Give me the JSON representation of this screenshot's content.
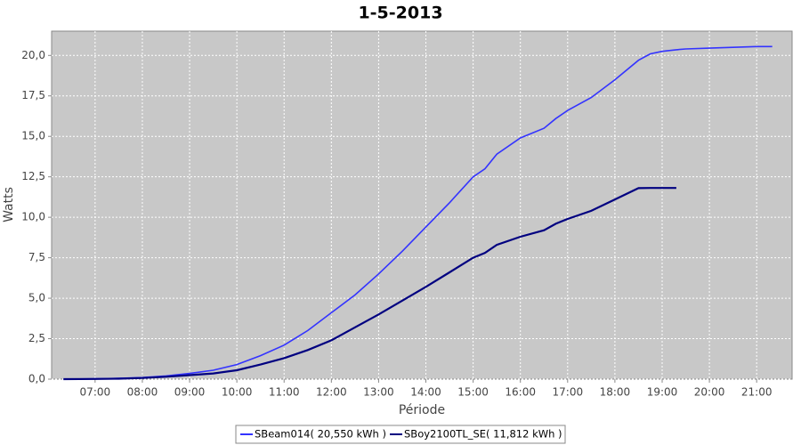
{
  "chart_data": {
    "type": "line",
    "title": "1-5-2013",
    "x_label": "Période",
    "y_label": "Watts",
    "x": [
      6.33,
      7,
      7.5,
      8,
      8.5,
      9,
      9.5,
      10,
      10.5,
      11,
      11.5,
      12,
      12.5,
      13,
      13.5,
      14,
      14.5,
      15,
      15.25,
      15.5,
      16,
      16.5,
      16.75,
      17,
      17.5,
      18,
      18.5,
      18.75,
      19,
      19.3,
      19.5,
      20,
      20.5,
      21,
      21.33
    ],
    "series": [
      {
        "name": "SBeam014( 20,550 kWh )",
        "color": "#3333ff",
        "values": [
          0,
          0.02,
          0.05,
          0.1,
          0.2,
          0.35,
          0.55,
          0.9,
          1.45,
          2.1,
          3.0,
          4.1,
          5.2,
          6.5,
          7.9,
          9.4,
          10.9,
          12.5,
          13.0,
          13.9,
          14.9,
          15.5,
          16.1,
          16.6,
          17.4,
          18.5,
          19.7,
          20.1,
          20.25,
          20.35,
          20.4,
          20.45,
          20.5,
          20.55,
          20.55
        ]
      },
      {
        "name": "SBoy2100TL_SE( 11,812 kWh )",
        "color": "#000080",
        "values": [
          0,
          0.01,
          0.03,
          0.07,
          0.15,
          0.25,
          0.35,
          0.55,
          0.9,
          1.3,
          1.8,
          2.4,
          3.2,
          4.0,
          4.85,
          5.7,
          6.6,
          7.5,
          7.8,
          8.3,
          8.8,
          9.2,
          9.6,
          9.9,
          10.4,
          11.1,
          11.8,
          11.81,
          11.81,
          11.81,
          null,
          null,
          null,
          null,
          null
        ]
      }
    ],
    "xlim": [
      6.08,
      21.75
    ],
    "ylim": [
      0,
      21.5
    ],
    "xticks": [
      {
        "value": 7,
        "label": "07:00"
      },
      {
        "value": 8,
        "label": "08:00"
      },
      {
        "value": 9,
        "label": "09:00"
      },
      {
        "value": 10,
        "label": "10:00"
      },
      {
        "value": 11,
        "label": "11:00"
      },
      {
        "value": 12,
        "label": "12:00"
      },
      {
        "value": 13,
        "label": "13:00"
      },
      {
        "value": 14,
        "label": "14:00"
      },
      {
        "value": 15,
        "label": "15:00"
      },
      {
        "value": 16,
        "label": "16:00"
      },
      {
        "value": 17,
        "label": "17:00"
      },
      {
        "value": 18,
        "label": "18:00"
      },
      {
        "value": 19,
        "label": "19:00"
      },
      {
        "value": 20,
        "label": "20:00"
      },
      {
        "value": 21,
        "label": "21:00"
      }
    ],
    "yticks": [
      {
        "value": 0,
        "label": "0,0"
      },
      {
        "value": 2.5,
        "label": "2,5"
      },
      {
        "value": 5,
        "label": "5,0"
      },
      {
        "value": 7.5,
        "label": "7,5"
      },
      {
        "value": 10,
        "label": "10,0"
      },
      {
        "value": 12.5,
        "label": "12,5"
      },
      {
        "value": 15,
        "label": "15,0"
      },
      {
        "value": 17.5,
        "label": "17,5"
      },
      {
        "value": 20,
        "label": "20,0"
      }
    ],
    "grid": true
  }
}
